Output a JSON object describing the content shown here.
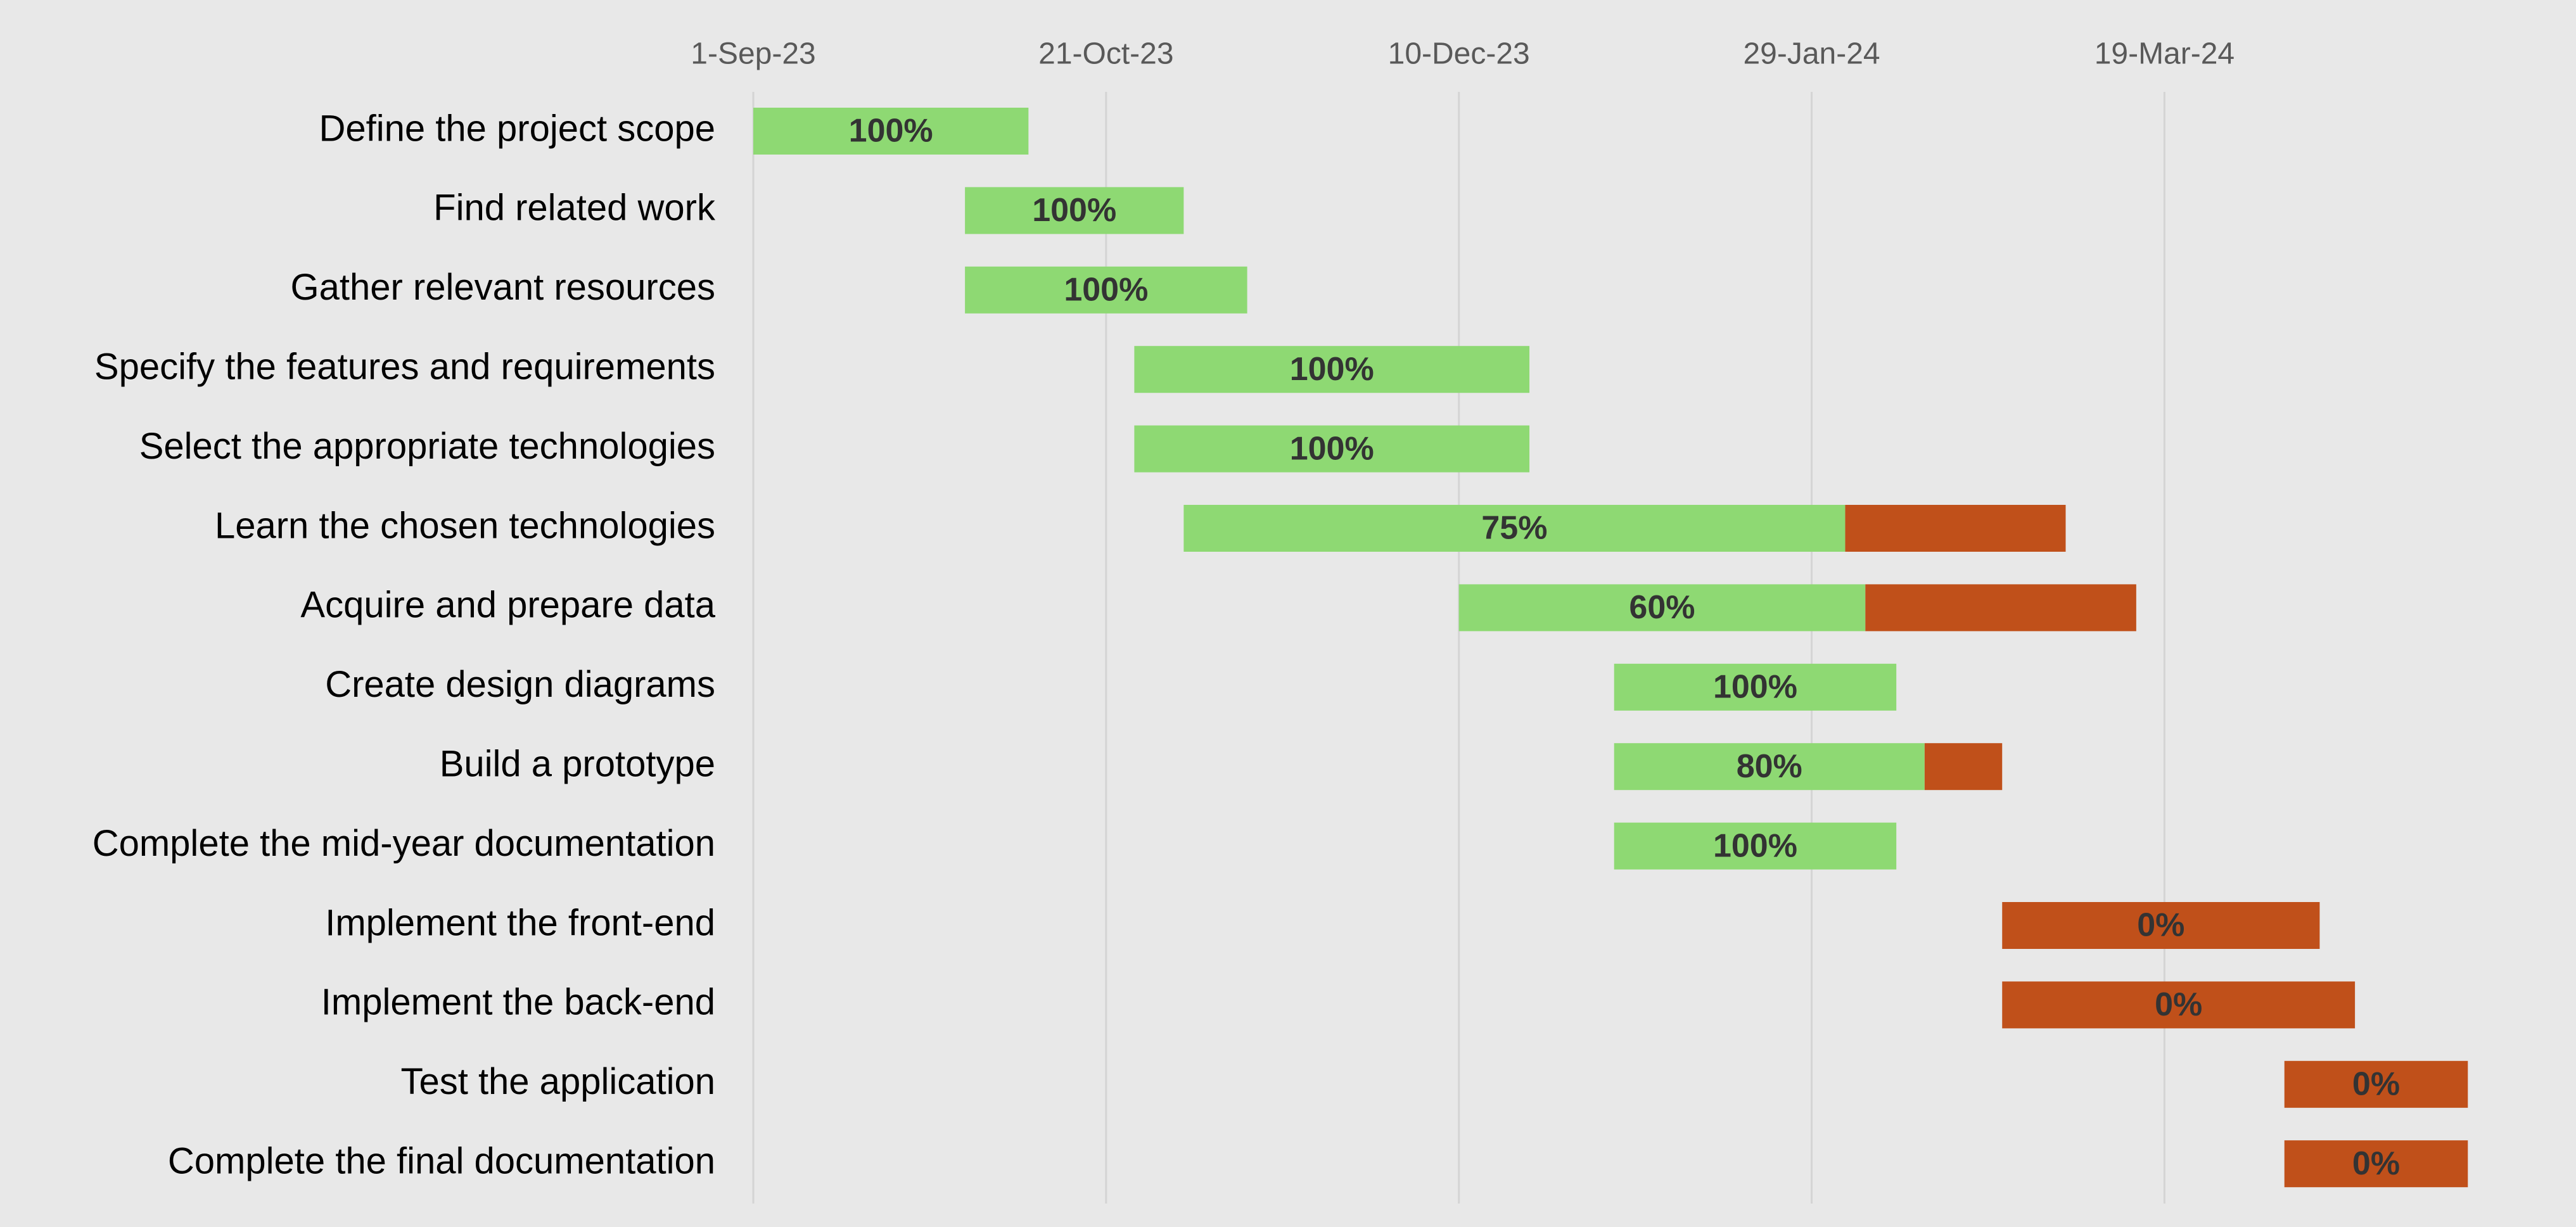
{
  "chart_data": {
    "type": "gantt",
    "title": "",
    "xlabel": "",
    "ylabel": "",
    "x_axis_position": "top",
    "grid": "vertical",
    "xlim": [
      "2023-09-01",
      "2024-05-08"
    ],
    "x_ticks": [
      {
        "date": "2023-09-01",
        "label": "1-Sep-23"
      },
      {
        "date": "2023-10-21",
        "label": "21-Oct-23"
      },
      {
        "date": "2023-12-10",
        "label": "10-Dec-23"
      },
      {
        "date": "2024-01-29",
        "label": "29-Jan-24"
      },
      {
        "date": "2024-03-19",
        "label": "19-Mar-24"
      }
    ],
    "tasks": [
      {
        "name": "Define the project scope",
        "start": "2023-09-01",
        "end": "2023-10-10",
        "percent_complete": 100,
        "label": "100%"
      },
      {
        "name": "Find related work",
        "start": "2023-10-01",
        "end": "2023-11-01",
        "percent_complete": 100,
        "label": "100%"
      },
      {
        "name": "Gather relevant resources",
        "start": "2023-10-01",
        "end": "2023-11-10",
        "percent_complete": 100,
        "label": "100%"
      },
      {
        "name": "Specify the features and requirements",
        "start": "2023-10-25",
        "end": "2023-12-20",
        "percent_complete": 100,
        "label": "100%"
      },
      {
        "name": "Select the appropriate technologies",
        "start": "2023-10-25",
        "end": "2023-12-20",
        "percent_complete": 100,
        "label": "100%"
      },
      {
        "name": "Learn the chosen technologies",
        "start": "2023-11-01",
        "end": "2024-03-05",
        "percent_complete": 75,
        "label": "75%"
      },
      {
        "name": "Acquire and prepare data",
        "start": "2023-12-10",
        "end": "2024-03-15",
        "percent_complete": 60,
        "label": "60%"
      },
      {
        "name": "Create design diagrams",
        "start": "2024-01-01",
        "end": "2024-02-10",
        "percent_complete": 100,
        "label": "100%"
      },
      {
        "name": "Build a prototype",
        "start": "2024-01-01",
        "end": "2024-02-25",
        "percent_complete": 80,
        "label": "80%"
      },
      {
        "name": "Complete the mid-year documentation",
        "start": "2024-01-01",
        "end": "2024-02-10",
        "percent_complete": 100,
        "label": "100%"
      },
      {
        "name": "Implement the front-end",
        "start": "2024-02-25",
        "end": "2024-04-10",
        "percent_complete": 0,
        "label": "0%"
      },
      {
        "name": "Implement the back-end",
        "start": "2024-02-25",
        "end": "2024-04-15",
        "percent_complete": 0,
        "label": "0%"
      },
      {
        "name": "Test the application",
        "start": "2024-04-05",
        "end": "2024-05-01",
        "percent_complete": 0,
        "label": "0%"
      },
      {
        "name": "Complete the final documentation",
        "start": "2024-04-05",
        "end": "2024-05-01",
        "percent_complete": 0,
        "label": "0%"
      }
    ],
    "colors": {
      "complete": "#8ed973",
      "remaining": "#c0501a",
      "background": "#e8e8e8",
      "gridline": "#d4d4d4",
      "tick_text": "#595959",
      "label_text": "#000000",
      "percent_text": "#333333"
    }
  }
}
